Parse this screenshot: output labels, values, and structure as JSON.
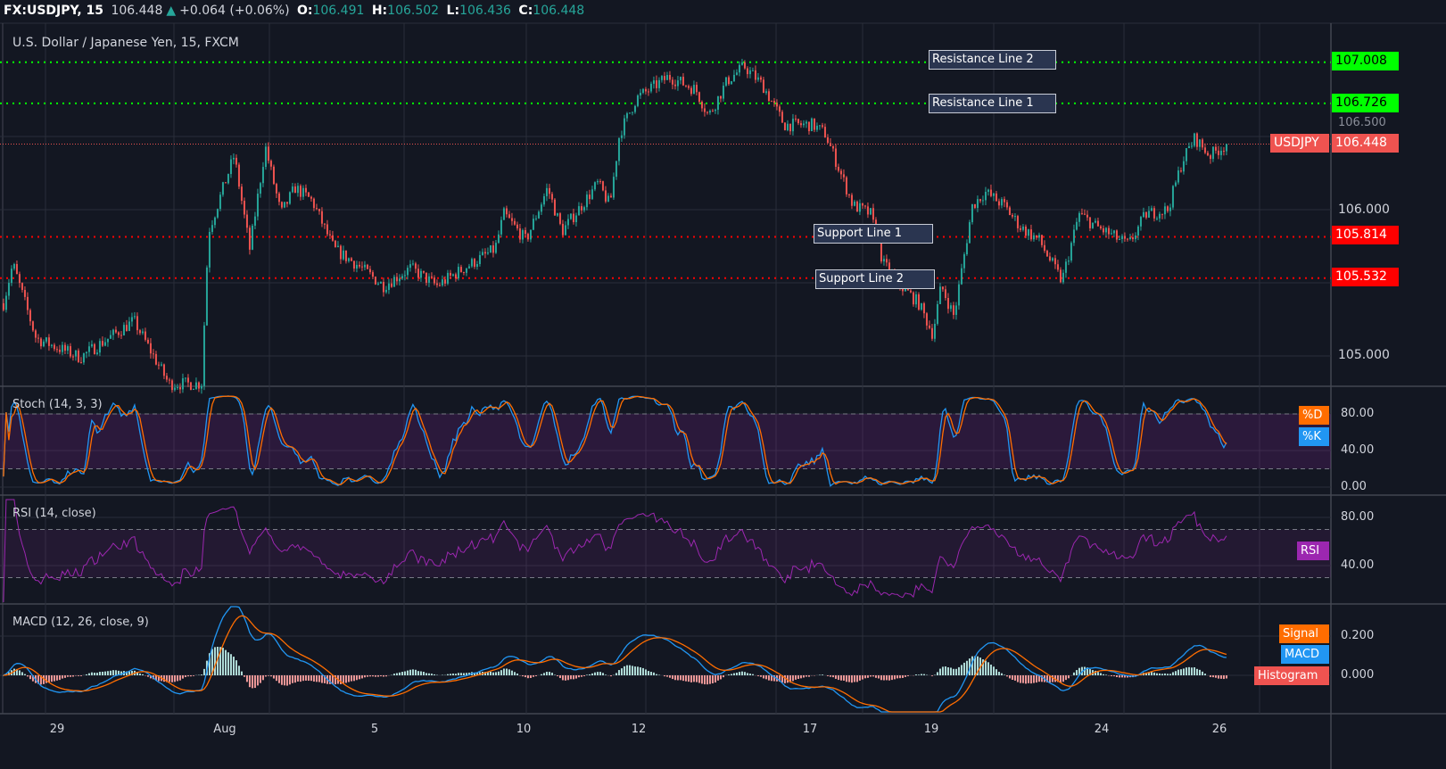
{
  "header": {
    "symbol": "FX:USDJPY, 15",
    "last": "106.448",
    "arrow": "▲",
    "change": "+0.064 (+0.06%)",
    "o_label": "O:",
    "o": "106.491",
    "h_label": "H:",
    "h": "106.502",
    "l_label": "L:",
    "l": "106.436",
    "c_label": "C:",
    "c": "106.448"
  },
  "colors": {
    "background": "#131722",
    "up": "#26a69a",
    "down": "#ef5350",
    "resistance": "#00ff00",
    "support": "#ff0000",
    "stoch_k": "#2196f3",
    "stoch_d": "#ff6d00",
    "rsi": "#9c27b0",
    "macd": "#2196f3",
    "signal": "#ff6d00"
  },
  "chart_data": {
    "type": "candlestick",
    "title": "U.S. Dollar / Japanese Yen, 15, FXCM",
    "symbol_tag": "USDJPY",
    "last_price": "106.448",
    "y_ticks": [
      "107.008",
      "106.726",
      "106.500",
      "106.448",
      "106.000",
      "105.814",
      "105.532",
      "105.000"
    ],
    "ylim": [
      104.8,
      107.1
    ],
    "x_ticks": [
      "29",
      "Aug",
      "5",
      "10",
      "12",
      "17",
      "19",
      "24",
      "26"
    ],
    "grid": true,
    "lines": [
      {
        "name": "Resistance Line 2",
        "price": 107.008,
        "color": "#00ff00"
      },
      {
        "name": "Resistance Line 1",
        "price": 106.726,
        "color": "#00ff00"
      },
      {
        "name": "Support Line 1",
        "price": 105.814,
        "color": "#ff0000"
      },
      {
        "name": "Support Line 2",
        "price": 105.532,
        "color": "#ff0000"
      }
    ],
    "series": [
      {
        "t": "Jul 28 01:00",
        "c": 105.36
      },
      {
        "t": "Jul 28 05:00",
        "c": 105.63
      },
      {
        "t": "Jul 28 15:00",
        "c": 105.12
      },
      {
        "t": "Jul 29 10:00",
        "c": 104.99
      },
      {
        "t": "Jul 30 09:00",
        "c": 105.24
      },
      {
        "t": "Jul 31 00:00",
        "c": 104.81
      },
      {
        "t": "Jul 31 14:00",
        "c": 104.81
      },
      {
        "t": "Jul 31 17:00",
        "c": 105.85
      },
      {
        "t": "Aug 1 06:00",
        "c": 106.37
      },
      {
        "t": "Aug 1 16:00",
        "c": 105.73
      },
      {
        "t": "Aug 2 02:00",
        "c": 106.43
      },
      {
        "t": "Aug 2 12:00",
        "c": 105.97
      },
      {
        "t": "Aug 2 21:00",
        "c": 106.15
      },
      {
        "t": "Aug 3 08:00",
        "c": 106.06
      },
      {
        "t": "Aug 3 22:00",
        "c": 105.73
      },
      {
        "t": "Aug 4 12:00",
        "c": 105.63
      },
      {
        "t": "Aug 5 07:00",
        "c": 105.48
      },
      {
        "t": "Aug 6 05:00",
        "c": 105.6
      },
      {
        "t": "Aug 7 02:00",
        "c": 105.48
      },
      {
        "t": "Aug 8 00:00",
        "c": 105.6
      },
      {
        "t": "Aug 9 01:00",
        "c": 105.73
      },
      {
        "t": "Aug 9 08:00",
        "c": 105.97
      },
      {
        "t": "Aug 10 01:00",
        "c": 105.79
      },
      {
        "t": "Aug 10 10:00",
        "c": 106.15
      },
      {
        "t": "Aug 10 16:00",
        "c": 105.85
      },
      {
        "t": "Aug 11 07:00",
        "c": 106.18
      },
      {
        "t": "Aug 11 12:00",
        "c": 106.03
      },
      {
        "t": "Aug 11 16:00",
        "c": 106.52
      },
      {
        "t": "Aug 11 23:00",
        "c": 106.76
      },
      {
        "t": "Aug 12 21:00",
        "c": 106.91
      },
      {
        "t": "Aug 13 16:00",
        "c": 106.82
      },
      {
        "t": "Aug 14 01:00",
        "c": 106.64
      },
      {
        "t": "Aug 14 14:00",
        "c": 106.88
      },
      {
        "t": "Aug 15 02:00",
        "c": 106.98
      },
      {
        "t": "Aug 15 15:00",
        "c": 106.85
      },
      {
        "t": "Aug 16 06:00",
        "c": 106.58
      },
      {
        "t": "Aug 17 01:00",
        "c": 106.58
      },
      {
        "t": "Aug 17 06:00",
        "c": 106.52
      },
      {
        "t": "Aug 17 11:00",
        "c": 106.3
      },
      {
        "t": "Aug 17 17:00",
        "c": 106.03
      },
      {
        "t": "Aug 18 00:00",
        "c": 105.97
      },
      {
        "t": "Aug 18 05:00",
        "c": 105.63
      },
      {
        "t": "Aug 18 12:00",
        "c": 105.48
      },
      {
        "t": "Aug 18 19:00",
        "c": 105.36
      },
      {
        "t": "Aug 19 01:00",
        "c": 105.15
      },
      {
        "t": "Aug 19 07:00",
        "c": 105.48
      },
      {
        "t": "Aug 19 16:00",
        "c": 105.27
      },
      {
        "t": "Aug 20 05:00",
        "c": 106.03
      },
      {
        "t": "Aug 20 14:00",
        "c": 106.12
      },
      {
        "t": "Aug 21 03:00",
        "c": 106.03
      },
      {
        "t": "Aug 21 15:00",
        "c": 105.88
      },
      {
        "t": "Aug 22 04:00",
        "c": 105.79
      },
      {
        "t": "Aug 22 20:00",
        "c": 105.51
      },
      {
        "t": "Aug 23 08:00",
        "c": 105.97
      },
      {
        "t": "Aug 23 21:00",
        "c": 105.88
      },
      {
        "t": "Aug 24 11:00",
        "c": 105.76
      },
      {
        "t": "Aug 24 18:00",
        "c": 105.97
      },
      {
        "t": "Aug 25 03:00",
        "c": 106.0
      },
      {
        "t": "Aug 25 09:00",
        "c": 106.34
      },
      {
        "t": "Aug 25 14:00",
        "c": 106.49
      },
      {
        "t": "Aug 25 20:00",
        "c": 106.37
      },
      {
        "t": "Aug 26 03:00",
        "c": 106.448
      }
    ]
  },
  "stoch": {
    "title": "Stoch (14, 3, 3)",
    "y_ticks": [
      "80.00",
      "40.00",
      "0.00"
    ],
    "band": [
      20,
      80
    ],
    "d_label": "%D",
    "k_label": "%K"
  },
  "rsi": {
    "title": "RSI (14, close)",
    "y_ticks": [
      "80.00",
      "40.00"
    ],
    "band": [
      30,
      70
    ],
    "label": "RSI"
  },
  "macd": {
    "title": "MACD (12, 26, close, 9)",
    "y_ticks": [
      "0.200",
      "0.000"
    ],
    "signal_label": "Signal",
    "macd_label": "MACD",
    "hist_label": "Histogram"
  }
}
